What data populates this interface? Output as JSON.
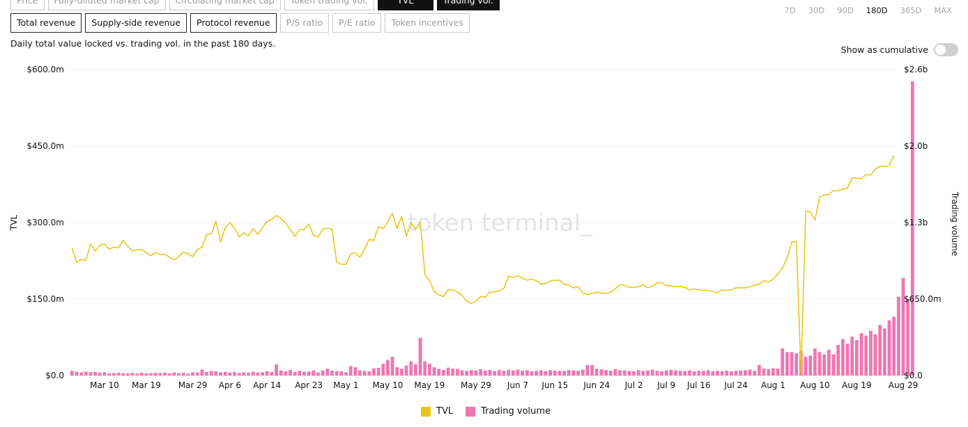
{
  "metric_tabs_top": [
    {
      "label": "Price",
      "state": "disabled"
    },
    {
      "label": "Fully-diluted market cap",
      "state": "disabled"
    },
    {
      "label": "Circulating market cap",
      "state": "disabled"
    },
    {
      "label": "Token trading vol.",
      "state": "disabled"
    },
    {
      "label": "TVL",
      "state": "dark"
    },
    {
      "label": "Trading vol.",
      "state": "dark"
    }
  ],
  "metric_tabs_mid": [
    {
      "label": "Total revenue",
      "state": "normal"
    },
    {
      "label": "Supply-side revenue",
      "state": "normal"
    },
    {
      "label": "Protocol revenue",
      "state": "normal"
    },
    {
      "label": "P/S ratio",
      "state": "disabled"
    },
    {
      "label": "P/E ratio",
      "state": "disabled"
    },
    {
      "label": "Token incentives",
      "state": "disabled"
    }
  ],
  "time_ranges": [
    {
      "label": "7D",
      "active": false
    },
    {
      "label": "30D",
      "active": false
    },
    {
      "label": "90D",
      "active": false
    },
    {
      "label": "180D",
      "active": true
    },
    {
      "label": "365D",
      "active": false
    },
    {
      "label": "MAX",
      "active": false
    }
  ],
  "description": "Daily total value locked vs. trading vol. in the past 180 days.",
  "cumulative_label": "Show as cumulative",
  "cumulative_on": false,
  "watermark": "token terminal_",
  "colors": {
    "tvl": "#e8c61c",
    "volume": "#ef76b1"
  },
  "chart_data": {
    "type": "line+bar",
    "left_axis": {
      "label": "TVL",
      "ticks": [
        "$0.0",
        "$150.0m",
        "$300.0m",
        "$450.0m",
        "$600.0m"
      ],
      "range": [
        0,
        600
      ]
    },
    "right_axis": {
      "label": "Trading volume",
      "ticks": [
        "$0.0",
        "$650.0m",
        "$1.3b",
        "$2.0b",
        "$2.6b"
      ],
      "range": [
        0,
        2600
      ]
    },
    "x_ticks": [
      {
        "label": "Mar 10",
        "day": 8
      },
      {
        "label": "Mar 19",
        "day": 17
      },
      {
        "label": "Mar 29",
        "day": 27
      },
      {
        "label": "Apr 6",
        "day": 35
      },
      {
        "label": "Apr 14",
        "day": 43
      },
      {
        "label": "Apr 23",
        "day": 52
      },
      {
        "label": "May 1",
        "day": 60
      },
      {
        "label": "May 10",
        "day": 69
      },
      {
        "label": "May 19",
        "day": 78
      },
      {
        "label": "May 29",
        "day": 88
      },
      {
        "label": "Jun 7",
        "day": 97
      },
      {
        "label": "Jun 15",
        "day": 105
      },
      {
        "label": "Jun 24",
        "day": 114
      },
      {
        "label": "Jul 2",
        "day": 122
      },
      {
        "label": "Jul 9",
        "day": 129
      },
      {
        "label": "Jul 16",
        "day": 136
      },
      {
        "label": "Jul 24",
        "day": 144
      },
      {
        "label": "Aug 1",
        "day": 152
      },
      {
        "label": "Aug 10",
        "day": 161
      },
      {
        "label": "Aug 19",
        "day": 170
      },
      {
        "label": "Aug 29",
        "day": 180
      }
    ],
    "series": [
      {
        "name": "TVL",
        "unit": "$m",
        "values": [
          250,
          222,
          228,
          226,
          258,
          244,
          255,
          258,
          248,
          252,
          250,
          265,
          254,
          244,
          247,
          247,
          241,
          235,
          241,
          237,
          238,
          232,
          227,
          233,
          242,
          239,
          233,
          247,
          252,
          277,
          278,
          302,
          262,
          290,
          300,
          289,
          272,
          280,
          274,
          288,
          277,
          290,
          302,
          306,
          314,
          308,
          299,
          286,
          273,
          286,
          286,
          297,
          275,
          272,
          287,
          289,
          287,
          222,
          218,
          218,
          238,
          241,
          232,
          248,
          267,
          265,
          292,
          288,
          301,
          318,
          288,
          312,
          273,
          300,
          287,
          300,
          198,
          186,
          165,
          158,
          155,
          168,
          168,
          164,
          157,
          146,
          141,
          146,
          155,
          154,
          164,
          164,
          166,
          171,
          195,
          192,
          196,
          191,
          187,
          189,
          186,
          179,
          181,
          185,
          187,
          187,
          179,
          177,
          172,
          174,
          162,
          159,
          161,
          164,
          162,
          161,
          164,
          170,
          178,
          177,
          173,
          173,
          174,
          178,
          172,
          175,
          182,
          182,
          176,
          176,
          174,
          175,
          173,
          168,
          170,
          168,
          167,
          167,
          165,
          162,
          168,
          167,
          168,
          172,
          172,
          172,
          174,
          177,
          179,
          186,
          184,
          189,
          199,
          211,
          230,
          262,
          263,
          3,
          322,
          321,
          305,
          350,
          354,
          355,
          363,
          362,
          366,
          367,
          388,
          387,
          386,
          394,
          393,
          405,
          410,
          410,
          412,
          432
        ]
      },
      {
        "name": "Trading volume",
        "unit": "$m",
        "values": [
          40,
          32,
          26,
          32,
          28,
          30,
          24,
          28,
          18,
          22,
          24,
          20,
          18,
          22,
          16,
          24,
          18,
          20,
          22,
          20,
          24,
          18,
          26,
          20,
          22,
          16,
          28,
          26,
          50,
          30,
          38,
          36,
          28,
          32,
          24,
          30,
          22,
          28,
          24,
          32,
          26,
          28,
          38,
          30,
          96,
          44,
          36,
          48,
          30,
          40,
          32,
          34,
          42,
          26,
          44,
          58,
          42,
          38,
          36,
          28,
          80,
          70,
          44,
          40,
          36,
          60,
          66,
          100,
          132,
          160,
          70,
          58,
          84,
          120,
          96,
          320,
          120,
          100,
          70,
          56,
          48,
          66,
          60,
          56,
          44,
          40,
          46,
          44,
          54,
          42,
          48,
          38,
          46,
          40,
          48,
          44,
          50,
          42,
          46,
          36,
          40,
          44,
          38,
          46,
          42,
          40,
          38,
          46,
          44,
          40,
          50,
          90,
          90,
          58,
          52,
          48,
          42,
          54,
          46,
          44,
          40,
          38,
          46,
          40,
          44,
          50,
          40,
          36,
          44,
          48,
          44,
          40,
          38,
          44,
          36,
          42,
          40,
          46,
          36,
          40,
          38,
          42,
          36,
          40,
          44,
          46,
          50,
          40,
          90,
          60,
          56,
          62,
          58,
          230,
          200,
          200,
          190,
          210,
          160,
          170,
          230,
          200,
          180,
          220,
          180,
          260,
          310,
          270,
          330,
          300,
          360,
          340,
          380,
          350,
          430,
          400,
          470,
          500,
          670,
          830,
          650,
          2500
        ]
      }
    ]
  }
}
